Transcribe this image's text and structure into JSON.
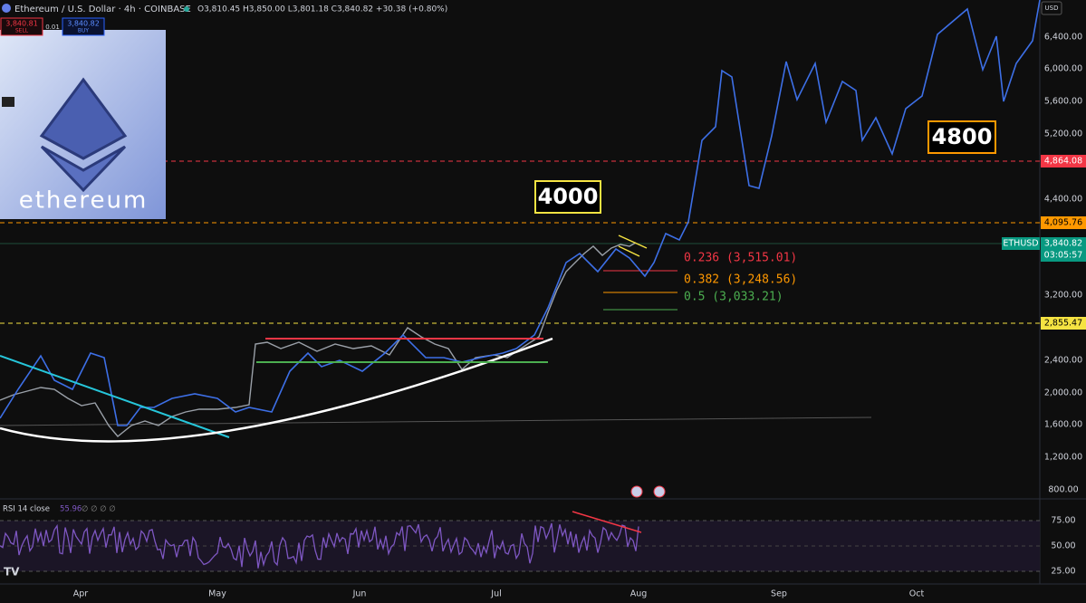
{
  "header": {
    "symbol": "Ethereum / U.S. Dollar · 4h · COINBASE",
    "ohlc": "O3,810.45 H3,850.00 L3,801.18 C3,840.82 +30.38 (+0.80%)"
  },
  "trade": {
    "sell_price": "3,840.81",
    "sell": "SELL",
    "spread": "0.01",
    "buy_price": "3,840.82",
    "buy": "BUY"
  },
  "logo": "ethereum",
  "currency": "USD",
  "price_axis": [
    "6,400.00",
    "6,000.00",
    "5,600.00",
    "5,200.00",
    "4,400.00",
    "3,200.00",
    "2,400.00",
    "2,000.00",
    "1,600.00",
    "1,200.00",
    "800.00"
  ],
  "price_tags": {
    "level_red": "4,864.08",
    "level_orange": "4,095.76",
    "symbol": "ETHUSD",
    "last": "3,840.82",
    "countdown": "03:05:57",
    "level_yellow": "2,855.47"
  },
  "fib": [
    "0.236 (3,515.01)",
    "0.382 (3,248.56)",
    "0.5 (3,033.21)"
  ],
  "annotations": [
    "4000",
    "4800"
  ],
  "rsi": {
    "title": "RSI 14 close",
    "value": "55.96",
    "extra": "∅ ∅ ∅ ∅",
    "axis": [
      "75.00",
      "50.00",
      "25.00"
    ]
  },
  "time_axis": [
    "Apr",
    "May",
    "Jun",
    "Jul",
    "Aug",
    "Sep",
    "Oct"
  ]
}
